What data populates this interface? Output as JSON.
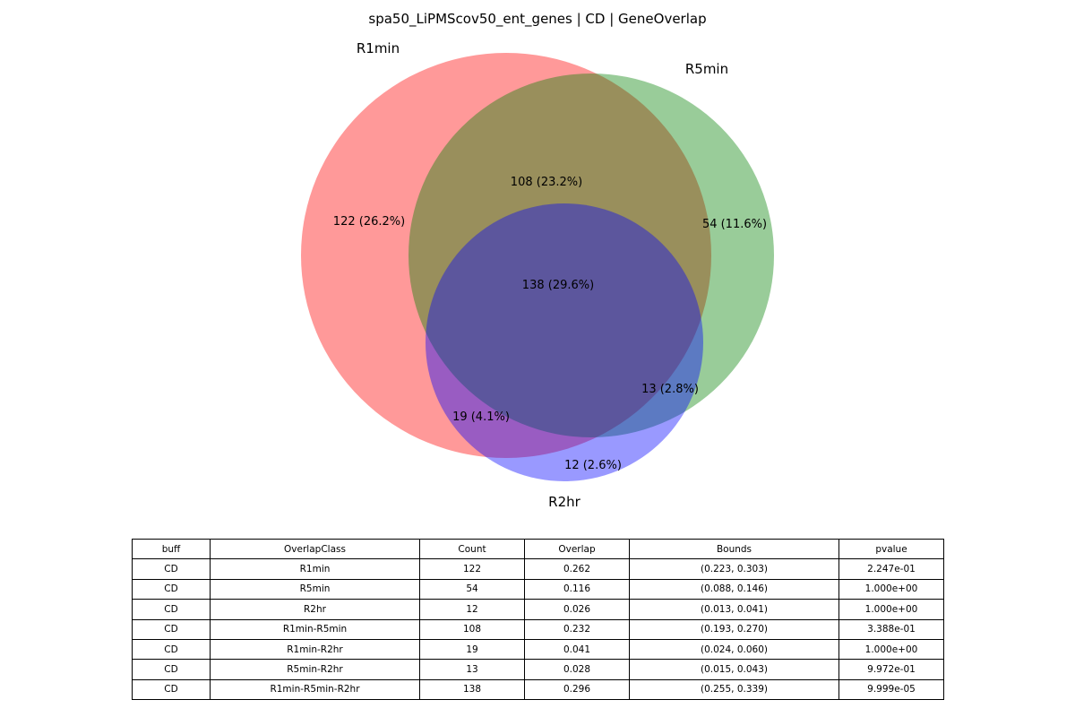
{
  "chart_data": {
    "type": "venn3",
    "title": "spa50_LiPMScov50_ent_genes | CD | GeneOverlap",
    "sets": [
      {
        "name": "R1min",
        "color": "#ff0000",
        "opacity": 0.4
      },
      {
        "name": "R5min",
        "color": "#008000",
        "opacity": 0.4
      },
      {
        "name": "R2hr",
        "color": "#0000ff",
        "opacity": 0.4
      }
    ],
    "regions": [
      {
        "id": "100",
        "sets": [
          "R1min"
        ],
        "count": 122,
        "pct": 26.2,
        "label": "122 (26.2%)"
      },
      {
        "id": "010",
        "sets": [
          "R5min"
        ],
        "count": 54,
        "pct": 11.6,
        "label": "54 (11.6%)"
      },
      {
        "id": "001",
        "sets": [
          "R2hr"
        ],
        "count": 12,
        "pct": 2.6,
        "label": "12 (2.6%)"
      },
      {
        "id": "110",
        "sets": [
          "R1min",
          "R5min"
        ],
        "count": 108,
        "pct": 23.2,
        "label": "108 (23.2%)"
      },
      {
        "id": "101",
        "sets": [
          "R1min",
          "R2hr"
        ],
        "count": 19,
        "pct": 4.1,
        "label": "19 (4.1%)"
      },
      {
        "id": "011",
        "sets": [
          "R5min",
          "R2hr"
        ],
        "count": 13,
        "pct": 2.8,
        "label": "13 (2.8%)"
      },
      {
        "id": "111",
        "sets": [
          "R1min",
          "R5min",
          "R2hr"
        ],
        "count": 138,
        "pct": 29.6,
        "label": "138 (29.6%)"
      }
    ]
  },
  "table": {
    "columns": [
      "buff",
      "OverlapClass",
      "Count",
      "Overlap",
      "Bounds",
      "pvalue"
    ],
    "rows": [
      [
        "CD",
        "R1min",
        "122",
        "0.262",
        "(0.223, 0.303)",
        "2.247e-01"
      ],
      [
        "CD",
        "R5min",
        "54",
        "0.116",
        "(0.088, 0.146)",
        "1.000e+00"
      ],
      [
        "CD",
        "R2hr",
        "12",
        "0.026",
        "(0.013, 0.041)",
        "1.000e+00"
      ],
      [
        "CD",
        "R1min-R5min",
        "108",
        "0.232",
        "(0.193, 0.270)",
        "3.388e-01"
      ],
      [
        "CD",
        "R1min-R2hr",
        "19",
        "0.041",
        "(0.024, 0.060)",
        "1.000e+00"
      ],
      [
        "CD",
        "R5min-R2hr",
        "13",
        "0.028",
        "(0.015, 0.043)",
        "9.972e-01"
      ],
      [
        "CD",
        "R1min-R5min-R2hr",
        "138",
        "0.296",
        "(0.255, 0.339)",
        "9.999e-05"
      ]
    ]
  }
}
